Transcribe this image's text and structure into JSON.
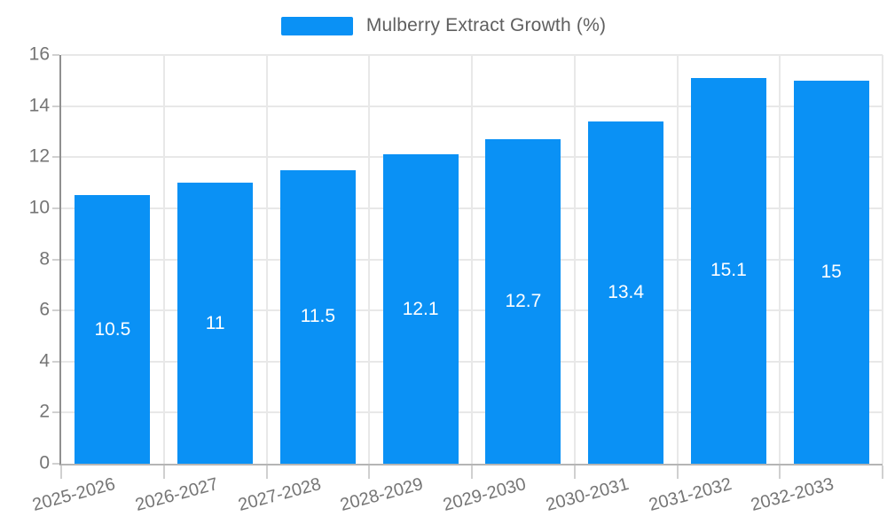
{
  "legend": {
    "label": "Mulberry Extract Growth (%)"
  },
  "colors": {
    "background": "#ffffff",
    "bar": "#0a91f5",
    "bar_label": "#ffffff",
    "grid": "#e8e8e8",
    "y_axis_line": "#8f8f8f",
    "x_axis_line": "#b5b5b5",
    "tick_mark": "#d0d0d0",
    "tick_label": "#757575",
    "legend_text": "#5f5f5f"
  },
  "chart_data": {
    "type": "bar",
    "title": "Mulberry Extract Growth (%)",
    "series_name": "Mulberry Extract Growth (%)",
    "categories": [
      "2025-2026",
      "2026-2027",
      "2027-2028",
      "2028-2029",
      "2029-2030",
      "2030-2031",
      "2031-2032",
      "2032-2033"
    ],
    "values": [
      10.5,
      11,
      11.5,
      12.1,
      12.7,
      13.4,
      15.1,
      15
    ],
    "xlabel": "",
    "ylabel": "",
    "ylim": [
      0,
      16
    ],
    "ytick_step": 2,
    "yticks": [
      0,
      2,
      4,
      6,
      8,
      10,
      12,
      14,
      16
    ],
    "grid": true,
    "legend_position": "top-center",
    "bar_labels_visible": true,
    "bar_label_position": "center",
    "x_label_rotation_deg": -15
  }
}
